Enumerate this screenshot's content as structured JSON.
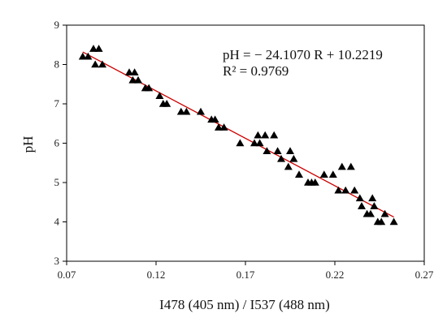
{
  "chart_data": {
    "type": "scatter",
    "title": "",
    "xlabel": "I478 (405 nm) / I537 (488 nm)",
    "ylabel": "pH",
    "xlim": [
      0.07,
      0.27
    ],
    "ylim": [
      3,
      9
    ],
    "x_ticks": [
      "0.07",
      "0.12",
      "0.17",
      "0.22",
      "0.27"
    ],
    "y_ticks": [
      "3",
      "4",
      "5",
      "6",
      "7",
      "8",
      "9"
    ],
    "grid": false,
    "marker": "triangle",
    "marker_color": "#000000",
    "fit_color": "#cc0000",
    "annotations": {
      "equation": "pH = − 24.1070 R + 10.2219",
      "r_squared": "R² = 0.9769"
    },
    "fit_line": {
      "slope": -24.107,
      "intercept": 10.2219,
      "x_range": [
        0.079,
        0.253
      ]
    },
    "series": [
      {
        "points": [
          [
            0.079,
            8.2
          ],
          [
            0.082,
            8.2
          ],
          [
            0.085,
            8.4
          ],
          [
            0.086,
            8.0
          ],
          [
            0.088,
            8.4
          ],
          [
            0.09,
            8.0
          ],
          [
            0.105,
            7.8
          ],
          [
            0.107,
            7.6
          ],
          [
            0.108,
            7.8
          ],
          [
            0.11,
            7.6
          ],
          [
            0.114,
            7.4
          ],
          [
            0.116,
            7.4
          ],
          [
            0.122,
            7.2
          ],
          [
            0.124,
            7.0
          ],
          [
            0.126,
            7.0
          ],
          [
            0.134,
            6.8
          ],
          [
            0.137,
            6.8
          ],
          [
            0.145,
            6.8
          ],
          [
            0.151,
            6.6
          ],
          [
            0.153,
            6.6
          ],
          [
            0.155,
            6.4
          ],
          [
            0.158,
            6.4
          ],
          [
            0.167,
            6.0
          ],
          [
            0.175,
            6.0
          ],
          [
            0.177,
            6.2
          ],
          [
            0.178,
            6.0
          ],
          [
            0.181,
            6.2
          ],
          [
            0.182,
            5.8
          ],
          [
            0.186,
            6.2
          ],
          [
            0.188,
            5.8
          ],
          [
            0.19,
            5.6
          ],
          [
            0.194,
            5.4
          ],
          [
            0.195,
            5.8
          ],
          [
            0.197,
            5.6
          ],
          [
            0.2,
            5.2
          ],
          [
            0.205,
            5.0
          ],
          [
            0.207,
            5.0
          ],
          [
            0.209,
            5.0
          ],
          [
            0.214,
            5.2
          ],
          [
            0.219,
            5.2
          ],
          [
            0.222,
            4.8
          ],
          [
            0.224,
            5.4
          ],
          [
            0.226,
            4.8
          ],
          [
            0.229,
            5.4
          ],
          [
            0.231,
            4.8
          ],
          [
            0.234,
            4.6
          ],
          [
            0.235,
            4.4
          ],
          [
            0.238,
            4.2
          ],
          [
            0.24,
            4.2
          ],
          [
            0.241,
            4.6
          ],
          [
            0.242,
            4.4
          ],
          [
            0.244,
            4.0
          ],
          [
            0.246,
            4.0
          ],
          [
            0.248,
            4.2
          ],
          [
            0.253,
            4.0
          ]
        ]
      }
    ]
  }
}
